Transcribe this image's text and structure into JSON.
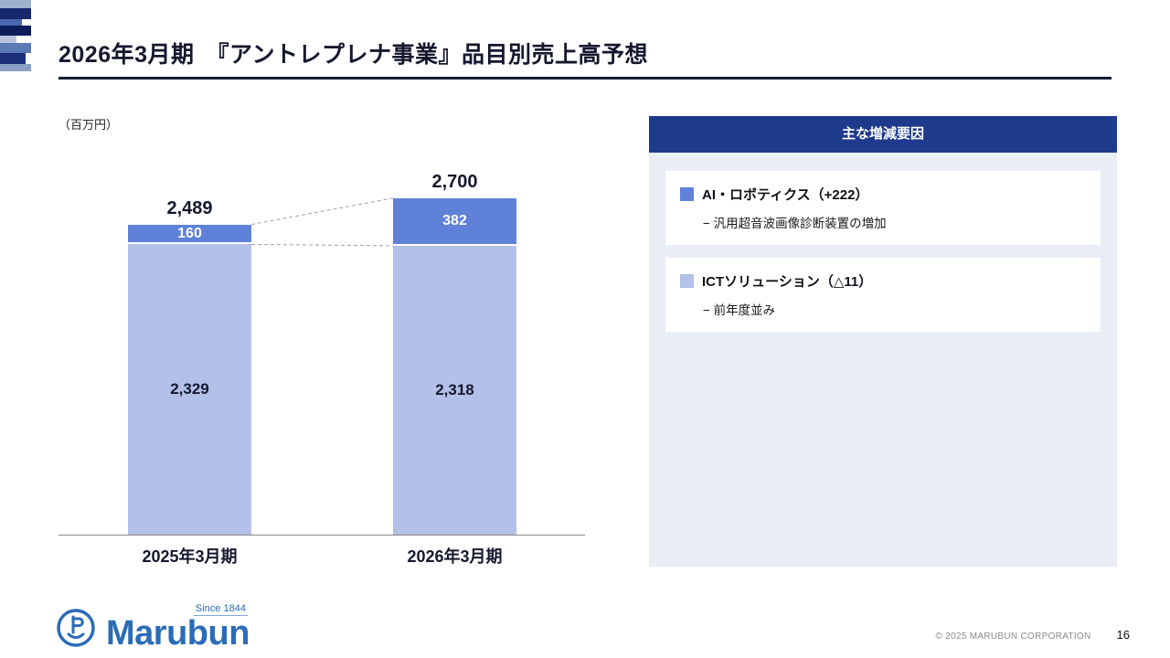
{
  "slide": {
    "title": "2026年3月期　『アントレプレナ事業』品目別売上高予想",
    "unit_label": "（百万円）",
    "page_number": "16",
    "copyright": "© 2025 MARUBUN CORPORATION"
  },
  "logo": {
    "wordmark": "Marubun",
    "tagline": "Since 1844"
  },
  "colors": {
    "accent_navy": "#171c3a",
    "panel_header": "#1e3a8c",
    "panel_bg": "#e9edf6",
    "bar_ai_robotics": "#5f82d8",
    "bar_ict": "#b3c0e8",
    "logo_blue": "#2a6cb6"
  },
  "chart_data": {
    "type": "bar",
    "stacked": true,
    "unit": "百万円",
    "title": "2026年3月期 『アントレプレナ事業』品目別売上高予想",
    "categories": [
      "2025年3月期",
      "2026年3月期"
    ],
    "series": [
      {
        "name": "ICTソリューション",
        "values": [
          2329,
          2318
        ],
        "color": "#b3c0e8"
      },
      {
        "name": "AI・ロボティクス",
        "values": [
          160,
          382
        ],
        "color": "#5f82d8"
      }
    ],
    "totals": [
      2489,
      2700
    ],
    "ylim": [
      0,
      3300
    ],
    "grid": false,
    "legend": "none"
  },
  "panel": {
    "header": "主な増減要因",
    "items": [
      {
        "series": "AI・ロボティクス",
        "title": "AI・ロボティクス（+222）",
        "detail": "− 汎用超音波画像診断装置の増加",
        "swatch_color": "#5f82d8"
      },
      {
        "series": "ICTソリューション",
        "title": "ICTソリューション（△11）",
        "detail": "− 前年度並み",
        "swatch_color": "#b3c0e8"
      }
    ]
  }
}
